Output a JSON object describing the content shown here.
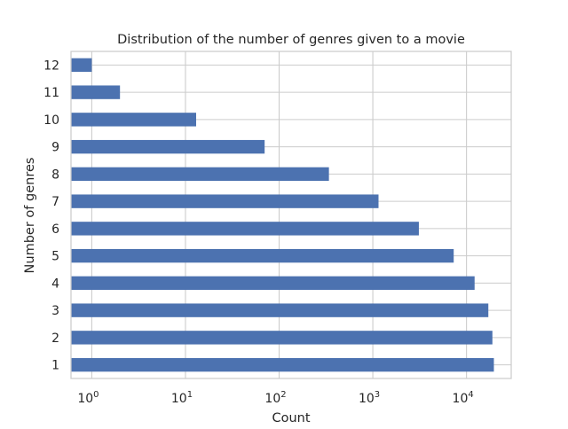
{
  "chart_data": {
    "type": "bar",
    "orientation": "horizontal",
    "title": "Distribution of the number of genres given to a movie",
    "xlabel": "Count",
    "ylabel": "Number of genres",
    "x_scale": "log",
    "x_tick_values": [
      1,
      10,
      100,
      1000,
      10000
    ],
    "x_tick_labels": [
      {
        "base": "10",
        "exp": "0"
      },
      {
        "base": "10",
        "exp": "1"
      },
      {
        "base": "10",
        "exp": "2"
      },
      {
        "base": "10",
        "exp": "3"
      },
      {
        "base": "10",
        "exp": "4"
      }
    ],
    "xlim": [
      0.6,
      30000
    ],
    "categories": [
      "1",
      "2",
      "3",
      "4",
      "5",
      "6",
      "7",
      "8",
      "9",
      "10",
      "11",
      "12"
    ],
    "values": [
      19600,
      18900,
      17100,
      12200,
      7300,
      3100,
      1150,
      340,
      70,
      13,
      2,
      1
    ],
    "bar_color": "#4c72b0",
    "grid": true,
    "grid_color": "#cccccc",
    "legend": "none"
  }
}
